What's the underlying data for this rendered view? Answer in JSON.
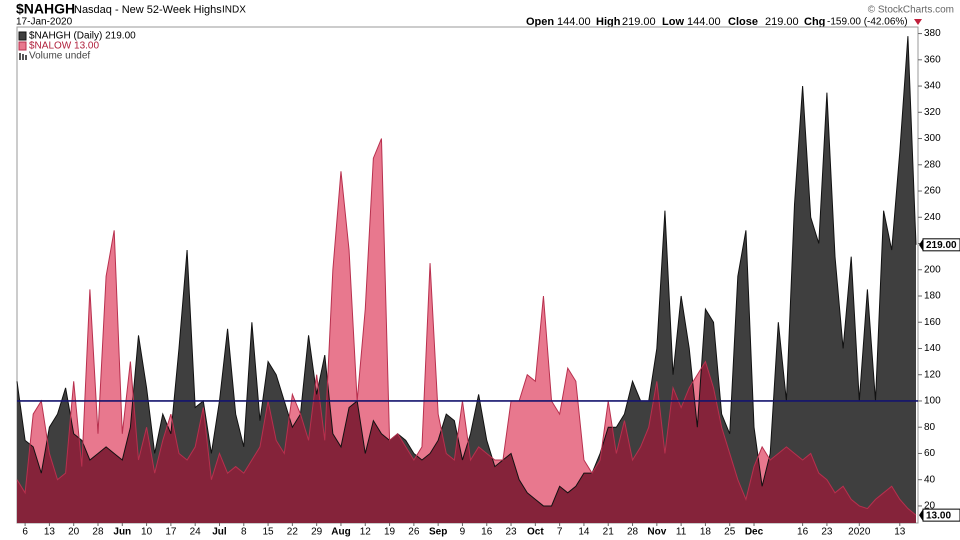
{
  "header": {
    "symbol": "$NAHGH",
    "name": "Nasdaq - New 52-Week Highs",
    "exchange": "INDX",
    "date": "17-Jan-2020",
    "open_label": "Open",
    "open": "144.00",
    "high_label": "High",
    "high": "219.00",
    "low_label": "Low",
    "low": "144.00",
    "close_label": "Close",
    "close": "219.00",
    "chg_label": "Chg",
    "chg": "-159.00 (-42.06%)",
    "watermark": "© StockCharts.com"
  },
  "chart_data": {
    "type": "area",
    "categories": [
      null,
      "6",
      null,
      null,
      "13",
      null,
      null,
      "20",
      null,
      null,
      "28",
      null,
      null,
      "Jun",
      null,
      null,
      "10",
      null,
      null,
      "17",
      null,
      null,
      "24",
      null,
      null,
      "Jul",
      null,
      null,
      "8",
      null,
      null,
      "15",
      null,
      null,
      "22",
      null,
      null,
      "29",
      null,
      null,
      "Aug",
      null,
      null,
      "12",
      null,
      null,
      "19",
      null,
      null,
      "26",
      null,
      null,
      "Sep",
      null,
      null,
      "9",
      null,
      null,
      "16",
      null,
      null,
      "23",
      null,
      null,
      "Oct",
      null,
      null,
      "7",
      null,
      null,
      "14",
      null,
      null,
      "21",
      null,
      null,
      "28",
      null,
      null,
      "Nov",
      null,
      null,
      "11",
      null,
      null,
      "18",
      null,
      null,
      "25",
      null,
      null,
      "Dec",
      null,
      null,
      null,
      null,
      null,
      "16",
      null,
      null,
      "23",
      null,
      null,
      null,
      "2020",
      null,
      null,
      null,
      null,
      "13",
      null,
      null
    ],
    "series": [
      {
        "name": "$NAHGH (Daily) 219.00",
        "color": "#3f3f3f",
        "line_color": "#111111",
        "last_label": "219.00",
        "values": [
          115,
          70,
          65,
          45,
          80,
          90,
          110,
          75,
          70,
          55,
          60,
          65,
          60,
          55,
          80,
          150,
          110,
          60,
          90,
          75,
          140,
          215,
          95,
          100,
          60,
          100,
          155,
          90,
          65,
          160,
          85,
          130,
          120,
          100,
          80,
          90,
          150,
          105,
          135,
          75,
          65,
          95,
          100,
          60,
          85,
          75,
          70,
          75,
          70,
          60,
          55,
          60,
          70,
          90,
          85,
          55,
          75,
          105,
          70,
          50,
          55,
          60,
          40,
          30,
          25,
          20,
          20,
          35,
          30,
          35,
          45,
          45,
          60,
          80,
          80,
          90,
          115,
          100,
          100,
          140,
          245,
          120,
          180,
          140,
          80,
          170,
          160,
          90,
          75,
          195,
          230,
          80,
          35,
          60,
          160,
          100,
          250,
          340,
          240,
          220,
          335,
          210,
          140,
          210,
          100,
          185,
          100,
          245,
          215,
          290,
          378,
          219
        ]
      },
      {
        "name": "$NALOW 13.00",
        "color": "#e8788e",
        "line_color": "#b8304e",
        "overlap_color": "#85233a",
        "last_label": "13.00",
        "values": [
          40,
          30,
          90,
          100,
          60,
          40,
          45,
          115,
          50,
          185,
          75,
          195,
          230,
          75,
          130,
          55,
          80,
          45,
          70,
          90,
          60,
          55,
          65,
          95,
          40,
          60,
          45,
          50,
          45,
          55,
          65,
          100,
          70,
          60,
          105,
          90,
          70,
          120,
          70,
          200,
          275,
          215,
          100,
          170,
          285,
          300,
          70,
          75,
          65,
          55,
          65,
          205,
          90,
          60,
          55,
          100,
          55,
          65,
          60,
          55,
          55,
          100,
          100,
          120,
          115,
          180,
          100,
          90,
          125,
          115,
          55,
          45,
          55,
          100,
          60,
          85,
          55,
          65,
          80,
          115,
          60,
          110,
          95,
          110,
          120,
          130,
          110,
          80,
          60,
          40,
          25,
          50,
          65,
          55,
          60,
          65,
          60,
          55,
          60,
          45,
          40,
          30,
          35,
          25,
          20,
          18,
          25,
          30,
          35,
          25,
          18,
          13
        ]
      }
    ],
    "legend_extra": "Volume undef",
    "hline": 100,
    "hline_color": "#14146e",
    "ylim": [
      7,
      385
    ],
    "yticks": [
      20,
      40,
      60,
      80,
      100,
      120,
      140,
      160,
      180,
      200,
      220,
      240,
      260,
      280,
      300,
      320,
      340,
      360,
      380
    ],
    "grid": false
  }
}
